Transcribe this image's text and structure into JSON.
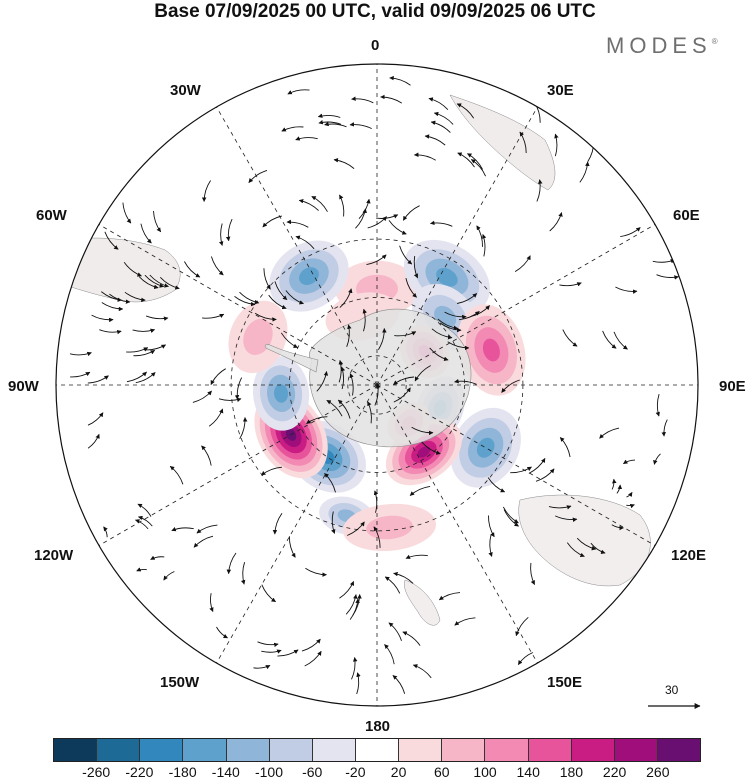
{
  "title": "Base 07/09/2025 00 UTC, valid 09/09/2025 06 UTC",
  "brand": {
    "name": "MODES",
    "mark": "®"
  },
  "longitude_labels": {
    "top": "0",
    "lon_30e": "30E",
    "lon_60e": "60E",
    "lon_90e": "90E",
    "lon_120e": "120E",
    "lon_150e": "150E",
    "bottom": "180",
    "lon_150w": "150W",
    "lon_120w": "120W",
    "lon_90w": "90W",
    "lon_60w": "60W",
    "lon_30w": "30W"
  },
  "vector_scale": {
    "label": "30"
  },
  "colorbar": {
    "colors": [
      "#0d3a5a",
      "#1d6a97",
      "#3288bc",
      "#5ea1cd",
      "#8fb5d8",
      "#c1cde4",
      "#e4e4f0",
      "#ffffff",
      "#fadbdd",
      "#f7b6c8",
      "#f28ab3",
      "#e8549c",
      "#c91d84",
      "#a00e7c",
      "#6a0f72"
    ],
    "tick_labels": [
      "-260",
      "-220",
      "-180",
      "-140",
      "-100",
      "-60",
      "-20",
      "20",
      "60",
      "100",
      "140",
      "180",
      "220",
      "260"
    ]
  },
  "anomaly_centers": [
    {
      "lon": 0,
      "lat": -57,
      "value": 90,
      "rx": 9,
      "ry": 6
    },
    {
      "lon": 33,
      "lat": -46,
      "value": -140,
      "rx": 10,
      "ry": 7
    },
    {
      "lon": 45,
      "lat": -57,
      "value": -110,
      "rx": 8,
      "ry": 6
    },
    {
      "lon": 55,
      "lat": -70,
      "value": 150,
      "rx": 6,
      "ry": 5
    },
    {
      "lon": 73,
      "lat": -49,
      "value": 150,
      "rx": 10,
      "ry": 7
    },
    {
      "lon": 110,
      "lat": -67,
      "value": -170,
      "rx": 7,
      "ry": 5
    },
    {
      "lon": 120,
      "lat": -47,
      "value": -140,
      "rx": 9,
      "ry": 7
    },
    {
      "lon": 145,
      "lat": -62,
      "value": 230,
      "rx": 9,
      "ry": 6
    },
    {
      "lon": 140,
      "lat": -73,
      "value": 110,
      "rx": 5,
      "ry": 4
    },
    {
      "lon": -167,
      "lat": -44,
      "value": -110,
      "rx": 6,
      "ry": 4
    },
    {
      "lon": -145,
      "lat": -60,
      "value": -210,
      "rx": 9,
      "ry": 7
    },
    {
      "lon": -120,
      "lat": -56,
      "value": 260,
      "rx": 10,
      "ry": 7
    },
    {
      "lon": -95,
      "lat": -57,
      "value": -150,
      "rx": 8,
      "ry": 6
    },
    {
      "lon": -32,
      "lat": -46,
      "value": -140,
      "rx": 9,
      "ry": 7
    },
    {
      "lon": -68,
      "lat": -46,
      "value": 60,
      "rx": 8,
      "ry": 6
    },
    {
      "lon": -12,
      "lat": -66,
      "value": 50,
      "rx": 8,
      "ry": 5
    },
    {
      "lon": 175,
      "lat": -41,
      "value": 60,
      "rx": 10,
      "ry": 5
    }
  ]
}
